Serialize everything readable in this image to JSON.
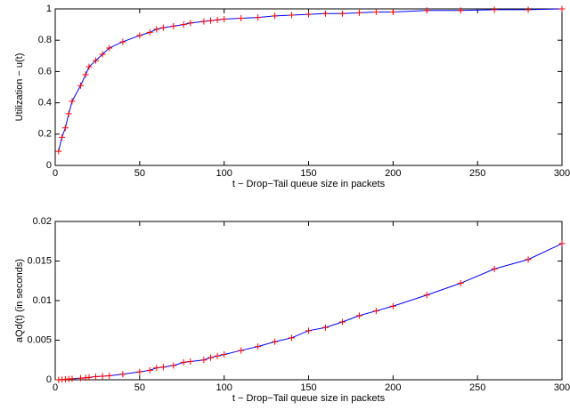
{
  "chart_data": [
    {
      "type": "line",
      "xlabel": "t − Drop−Tail queue size in packets",
      "ylabel": "Utilization − u(t)",
      "x": [
        2,
        4,
        6,
        8,
        10,
        15,
        18,
        20,
        24,
        28,
        32,
        40,
        50,
        56,
        60,
        64,
        70,
        76,
        80,
        88,
        92,
        96,
        100,
        110,
        120,
        130,
        140,
        150,
        160,
        170,
        180,
        190,
        200,
        220,
        240,
        260,
        280,
        300
      ],
      "series": [
        {
          "color": "#0000ff",
          "marker_color": "#ff0000",
          "marker": "+",
          "values": [
            0.09,
            0.18,
            0.24,
            0.33,
            0.41,
            0.51,
            0.58,
            0.63,
            0.67,
            0.71,
            0.75,
            0.79,
            0.83,
            0.85,
            0.87,
            0.88,
            0.89,
            0.9,
            0.91,
            0.92,
            0.925,
            0.93,
            0.935,
            0.94,
            0.945,
            0.955,
            0.96,
            0.965,
            0.97,
            0.97,
            0.975,
            0.98,
            0.98,
            0.99,
            0.99,
            0.995,
            0.995,
            1.0
          ]
        }
      ],
      "xlim": [
        0,
        300
      ],
      "xticks": [
        0,
        50,
        100,
        150,
        200,
        250,
        300
      ],
      "ylim": [
        0,
        1
      ],
      "yticks": [
        0,
        0.2,
        0.4,
        0.6,
        0.8,
        1
      ],
      "grid": false
    },
    {
      "type": "line",
      "xlabel": "t − Drop−Tail queue size in packets",
      "ylabel": "aQd(t) (in seconds)",
      "x": [
        2,
        4,
        6,
        8,
        10,
        15,
        18,
        20,
        24,
        28,
        32,
        40,
        50,
        56,
        60,
        64,
        70,
        76,
        80,
        88,
        92,
        96,
        100,
        110,
        120,
        130,
        140,
        150,
        160,
        170,
        180,
        190,
        200,
        220,
        240,
        260,
        280,
        300
      ],
      "series": [
        {
          "color": "#0000ff",
          "marker_color": "#ff0000",
          "marker": "+",
          "values": [
            0,
            3e-05,
            5e-05,
            0.0001,
            0.00012,
            0.0002,
            0.00025,
            0.0003,
            0.0004,
            0.00045,
            0.0005,
            0.0007,
            0.001,
            0.0012,
            0.0015,
            0.0016,
            0.0018,
            0.0022,
            0.0023,
            0.0025,
            0.0028,
            0.003,
            0.0032,
            0.0037,
            0.0042,
            0.0048,
            0.0053,
            0.0062,
            0.0066,
            0.0073,
            0.0081,
            0.0087,
            0.0093,
            0.0107,
            0.0122,
            0.014,
            0.0152,
            0.0172
          ]
        }
      ],
      "xlim": [
        0,
        300
      ],
      "xticks": [
        0,
        50,
        100,
        150,
        200,
        250,
        300
      ],
      "ylim": [
        0,
        0.02
      ],
      "yticks": [
        0,
        0.005,
        0.01,
        0.015,
        0.02
      ],
      "grid": false
    }
  ]
}
